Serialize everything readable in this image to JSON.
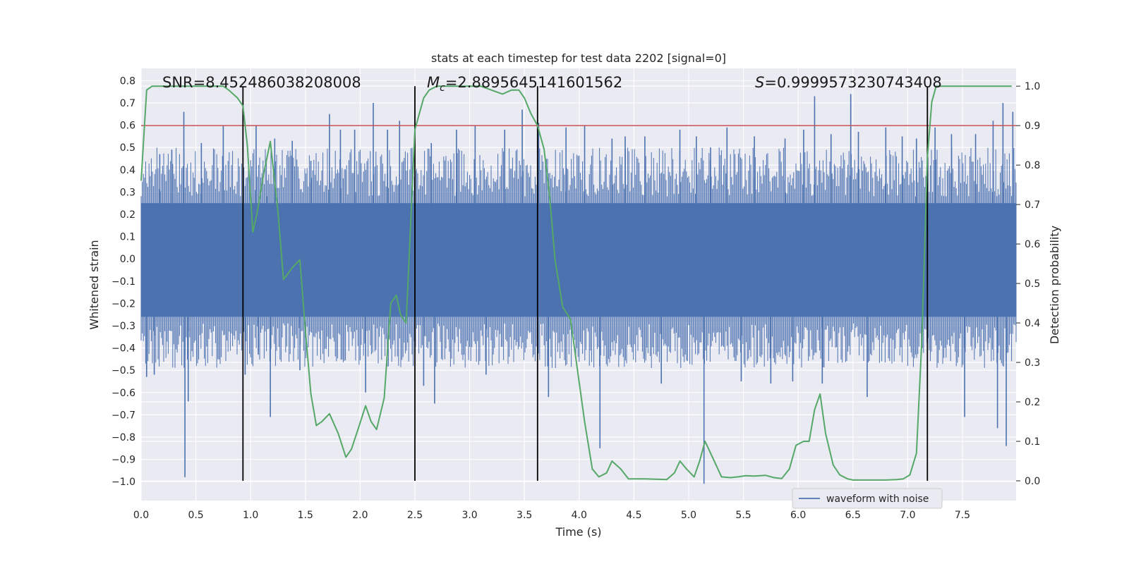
{
  "chart_data": {
    "type": "line",
    "title": "stats at each timestep for test data 2202 [signal=0]",
    "xlabel": "Time (s)",
    "ylabel_left": "Whitened strain",
    "ylabel_right": "Detection probability",
    "xlim": [
      0.0,
      7.99
    ],
    "ylim_left": [
      -1.085,
      0.855
    ],
    "ylim_right": [
      -0.05,
      1.045
    ],
    "x_ticks": [
      "0.0",
      "0.5",
      "1.0",
      "1.5",
      "2.0",
      "2.5",
      "3.0",
      "3.5",
      "4.0",
      "4.5",
      "5.0",
      "5.5",
      "6.0",
      "6.5",
      "7.0",
      "7.5"
    ],
    "x_tick_values": [
      0.0,
      0.5,
      1.0,
      1.5,
      2.0,
      2.5,
      3.0,
      3.5,
      4.0,
      4.5,
      5.0,
      5.5,
      6.0,
      6.5,
      7.0,
      7.5
    ],
    "y_left_ticks": [
      "0.8",
      "0.7",
      "0.6",
      "0.5",
      "0.4",
      "0.3",
      "0.2",
      "0.1",
      "0.0",
      "−0.1",
      "−0.2",
      "−0.3",
      "−0.4",
      "−0.5",
      "−0.6",
      "−0.7",
      "−0.8",
      "−0.9",
      "−1.0"
    ],
    "y_left_tick_values": [
      0.8,
      0.7,
      0.6,
      0.5,
      0.4,
      0.3,
      0.2,
      0.1,
      0.0,
      -0.1,
      -0.2,
      -0.3,
      -0.4,
      -0.5,
      -0.6,
      -0.7,
      -0.8,
      -0.9,
      -1.0
    ],
    "y_right_ticks": [
      "1.0",
      "0.9",
      "0.8",
      "0.7",
      "0.6",
      "0.5",
      "0.4",
      "0.3",
      "0.2",
      "0.1",
      "0.0"
    ],
    "y_right_tick_values": [
      1.0,
      0.9,
      0.8,
      0.7,
      0.6,
      0.5,
      0.4,
      0.3,
      0.2,
      0.1,
      0.0
    ],
    "grid": true,
    "threshold": {
      "value": 0.9,
      "axis": "right",
      "color": "#c44e52"
    },
    "vertical_markers": [
      0.93,
      2.5,
      3.62,
      7.18
    ],
    "annotations": {
      "snr": "SNR=8.452486038208008",
      "mc_symbol": "M",
      "mc_sub": "c",
      "mc_value": "=2.8895645141601562",
      "s_symbol": "S",
      "s_value": "=0.9999573230743408"
    },
    "waveform": {
      "name": "waveform with noise",
      "color": "#4c72b0",
      "core_band": [
        -0.26,
        0.25
      ],
      "spikes": [
        [
          0.05,
          -0.53
        ],
        [
          0.12,
          -0.52
        ],
        [
          0.17,
          0.47
        ],
        [
          0.28,
          0.49
        ],
        [
          0.39,
          0.66
        ],
        [
          0.4,
          -0.98
        ],
        [
          0.43,
          -0.64
        ],
        [
          0.55,
          0.52
        ],
        [
          0.75,
          0.6
        ],
        [
          0.95,
          -0.52
        ],
        [
          1.05,
          0.6
        ],
        [
          1.07,
          -0.43
        ],
        [
          1.15,
          0.28
        ],
        [
          1.18,
          -0.71
        ],
        [
          1.22,
          0.54
        ],
        [
          1.38,
          0.53
        ],
        [
          1.45,
          -0.5
        ],
        [
          1.55,
          0.44
        ],
        [
          1.72,
          0.65
        ],
        [
          1.82,
          0.58
        ],
        [
          1.95,
          0.58
        ],
        [
          2.05,
          -0.6
        ],
        [
          2.12,
          0.7
        ],
        [
          2.25,
          0.58
        ],
        [
          2.36,
          0.62
        ],
        [
          2.58,
          -0.57
        ],
        [
          2.65,
          0.52
        ],
        [
          2.68,
          -0.65
        ],
        [
          2.88,
          0.58
        ],
        [
          3.05,
          0.6
        ],
        [
          3.15,
          -0.52
        ],
        [
          3.32,
          0.58
        ],
        [
          3.48,
          0.67
        ],
        [
          3.63,
          0.61
        ],
        [
          3.72,
          -0.62
        ],
        [
          3.88,
          0.59
        ],
        [
          4.05,
          0.6
        ],
        [
          4.19,
          -0.85
        ],
        [
          4.3,
          0.54
        ],
        [
          4.42,
          0.55
        ],
        [
          4.6,
          0.55
        ],
        [
          4.75,
          -0.56
        ],
        [
          4.92,
          0.58
        ],
        [
          5.07,
          0.55
        ],
        [
          5.14,
          -1.01
        ],
        [
          5.2,
          0.5
        ],
        [
          5.35,
          0.59
        ],
        [
          5.48,
          -0.55
        ],
        [
          5.6,
          0.55
        ],
        [
          5.75,
          -0.56
        ],
        [
          5.88,
          0.54
        ],
        [
          5.95,
          -0.55
        ],
        [
          6.05,
          0.58
        ],
        [
          6.15,
          0.73
        ],
        [
          6.22,
          -0.56
        ],
        [
          6.3,
          0.56
        ],
        [
          6.48,
          0.74
        ],
        [
          6.55,
          0.57
        ],
        [
          6.63,
          -0.62
        ],
        [
          6.8,
          0.59
        ],
        [
          6.95,
          0.55
        ],
        [
          7.08,
          0.54
        ],
        [
          7.25,
          0.59
        ],
        [
          7.4,
          0.56
        ],
        [
          7.52,
          -0.71
        ],
        [
          7.62,
          0.56
        ],
        [
          7.78,
          0.62
        ],
        [
          7.82,
          -0.76
        ],
        [
          7.87,
          0.7
        ],
        [
          7.9,
          -0.84
        ],
        [
          7.96,
          0.66
        ]
      ]
    },
    "probability_series": {
      "name": "Detection probability",
      "color": "#55a868",
      "x": [
        0.0,
        0.05,
        0.1,
        0.15,
        0.2,
        0.3,
        0.4,
        0.5,
        0.6,
        0.7,
        0.75,
        0.8,
        0.88,
        0.93,
        0.97,
        1.02,
        1.06,
        1.12,
        1.18,
        1.25,
        1.3,
        1.38,
        1.45,
        1.5,
        1.55,
        1.6,
        1.65,
        1.72,
        1.8,
        1.87,
        1.92,
        1.98,
        2.05,
        2.1,
        2.15,
        2.22,
        2.28,
        2.33,
        2.37,
        2.42,
        2.5,
        2.58,
        2.63,
        2.7,
        2.8,
        2.9,
        3.0,
        3.1,
        3.2,
        3.3,
        3.38,
        3.45,
        3.5,
        3.56,
        3.62,
        3.68,
        3.73,
        3.78,
        3.85,
        3.92,
        3.98,
        4.05,
        4.12,
        4.18,
        4.25,
        4.3,
        4.38,
        4.45,
        4.52,
        4.6,
        4.7,
        4.8,
        4.87,
        4.92,
        4.98,
        5.05,
        5.1,
        5.15,
        5.2,
        5.25,
        5.3,
        5.38,
        5.45,
        5.52,
        5.6,
        5.7,
        5.78,
        5.85,
        5.92,
        5.98,
        6.05,
        6.1,
        6.15,
        6.2,
        6.25,
        6.32,
        6.38,
        6.45,
        6.5,
        6.6,
        6.7,
        6.8,
        6.9,
        6.96,
        7.02,
        7.08,
        7.13,
        7.18,
        7.22,
        7.26,
        7.3,
        7.4,
        7.5,
        7.6,
        7.7,
        7.8,
        7.95
      ],
      "y": [
        0.76,
        0.99,
        1.0,
        1.0,
        1.0,
        1.0,
        1.0,
        1.0,
        1.0,
        1.0,
        1.0,
        0.99,
        0.97,
        0.95,
        0.85,
        0.63,
        0.68,
        0.78,
        0.86,
        0.68,
        0.51,
        0.54,
        0.56,
        0.38,
        0.22,
        0.14,
        0.15,
        0.17,
        0.12,
        0.06,
        0.08,
        0.13,
        0.19,
        0.15,
        0.13,
        0.21,
        0.45,
        0.47,
        0.42,
        0.4,
        0.89,
        0.97,
        0.99,
        1.0,
        1.0,
        1.0,
        1.0,
        1.0,
        0.99,
        0.98,
        0.99,
        0.99,
        0.97,
        0.93,
        0.9,
        0.84,
        0.72,
        0.56,
        0.44,
        0.41,
        0.29,
        0.15,
        0.03,
        0.01,
        0.02,
        0.05,
        0.03,
        0.005,
        0.005,
        0.005,
        0.004,
        0.003,
        0.02,
        0.05,
        0.03,
        0.01,
        0.05,
        0.1,
        0.07,
        0.04,
        0.01,
        0.008,
        0.01,
        0.013,
        0.012,
        0.014,
        0.008,
        0.006,
        0.03,
        0.09,
        0.1,
        0.1,
        0.18,
        0.22,
        0.12,
        0.04,
        0.015,
        0.005,
        0.002,
        0.002,
        0.002,
        0.002,
        0.003,
        0.005,
        0.015,
        0.07,
        0.36,
        0.82,
        0.96,
        1.0,
        1.0,
        1.0,
        1.0,
        1.0,
        1.0,
        1.0,
        1.0
      ]
    },
    "legend": {
      "entries": [
        "waveform with noise"
      ],
      "placement": "lower-right"
    }
  }
}
